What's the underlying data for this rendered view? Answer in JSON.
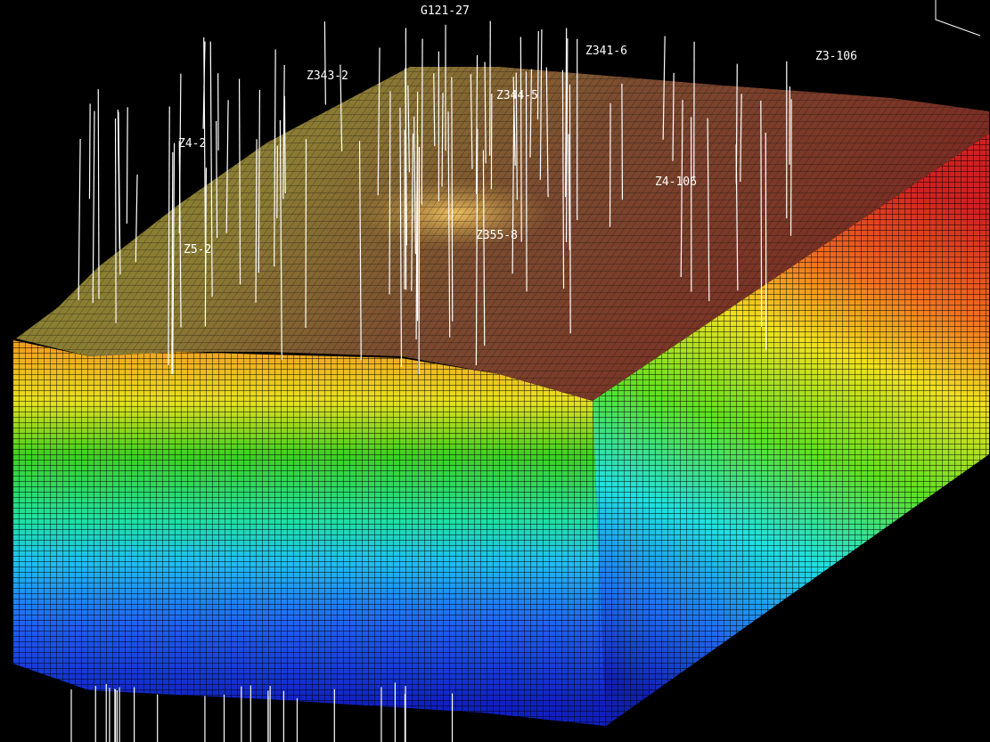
{
  "wells": [
    {
      "label": "G121-27"
    },
    {
      "label": "Z341-6"
    },
    {
      "label": "Z3-106"
    },
    {
      "label": "Z343-2"
    },
    {
      "label": "Z344-5"
    },
    {
      "label": "Z4-2"
    },
    {
      "label": "Z4-106"
    },
    {
      "label": "Z5-2"
    },
    {
      "label": "Z355-8"
    }
  ]
}
